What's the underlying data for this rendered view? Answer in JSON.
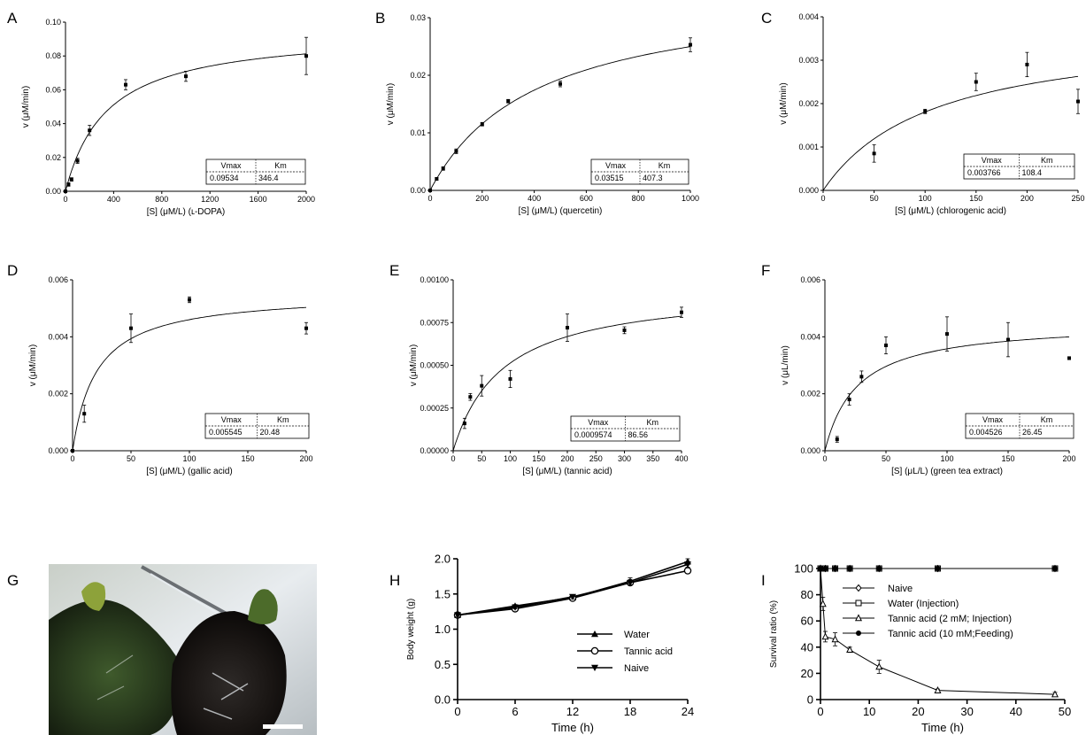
{
  "figure": {
    "panel_g": {
      "letter": "G",
      "alt": "photograph of two tadpoles (scale bar)"
    }
  },
  "chart_data": [
    {
      "panel": "A",
      "type": "scatter",
      "xlabel": "[S] (μM/L) (ʟ-DOPA)",
      "ylabel": "v (μM/min)",
      "xlim": [
        0,
        2000
      ],
      "ylim": [
        0,
        0.1
      ],
      "xticks": [
        "0",
        "400",
        "800",
        "1200",
        "1600",
        "2000"
      ],
      "yticks": [
        "0.00",
        "0.02",
        "0.04",
        "0.06",
        "0.08",
        "0.10"
      ],
      "x": [
        0,
        25,
        50,
        100,
        200,
        500,
        1000,
        2000
      ],
      "y": [
        0.0,
        0.004,
        0.007,
        0.018,
        0.036,
        0.063,
        0.068,
        0.08
      ],
      "err": [
        0,
        0.001,
        0.001,
        0.0015,
        0.003,
        0.003,
        0.003,
        0.011
      ],
      "fit": {
        "model": "michaelis-menten",
        "vmax": 0.09534,
        "km": 346.4
      },
      "table": {
        "headers": [
          "Vmax",
          "Km"
        ],
        "values": [
          "0.09534",
          "346.4"
        ]
      }
    },
    {
      "panel": "B",
      "type": "scatter",
      "xlabel": "[S] (μM/L) (quercetin)",
      "ylabel": "v (μM/min)",
      "xlim": [
        0,
        1000
      ],
      "ylim": [
        0,
        0.03
      ],
      "xticks": [
        "0",
        "200",
        "400",
        "600",
        "800",
        "1000"
      ],
      "yticks": [
        "0.00",
        "0.01",
        "0.02",
        "0.03"
      ],
      "x": [
        0,
        25,
        50,
        100,
        200,
        300,
        500,
        1000
      ],
      "y": [
        0.0,
        0.002,
        0.0038,
        0.0068,
        0.0115,
        0.0155,
        0.0185,
        0.0253
      ],
      "err": [
        0,
        0.0002,
        0.0003,
        0.0004,
        0.0003,
        0.0003,
        0.0005,
        0.0012
      ],
      "fit": {
        "model": "michaelis-menten",
        "vmax": 0.03515,
        "km": 407.3
      },
      "table": {
        "headers": [
          "Vmax",
          "Km"
        ],
        "values": [
          "0.03515",
          "407.3"
        ]
      }
    },
    {
      "panel": "C",
      "type": "scatter",
      "xlabel": "[S] (μM/L) (chlorogenic acid)",
      "ylabel": "v (μM/min)",
      "xlim": [
        0,
        250
      ],
      "ylim": [
        0,
        0.004
      ],
      "xticks": [
        "0",
        "50",
        "100",
        "150",
        "200",
        "250"
      ],
      "yticks": [
        "0.000",
        "0.001",
        "0.002",
        "0.003",
        "0.004"
      ],
      "x": [
        50,
        100,
        150,
        200,
        250
      ],
      "y": [
        0.00085,
        0.00182,
        0.0025,
        0.0029,
        0.00205
      ],
      "err": [
        0.0002,
        5e-05,
        0.0002,
        0.00028,
        0.00028
      ],
      "fit": {
        "model": "michaelis-menten",
        "vmax": 0.003766,
        "km": 108.4
      },
      "table": {
        "headers": [
          "Vmax",
          "Km"
        ],
        "values": [
          "0.003766",
          "108.4"
        ]
      }
    },
    {
      "panel": "D",
      "type": "scatter",
      "xlabel": "[S] (μM/L) (gallic acid)",
      "ylabel": "v (μM/min)",
      "xlim": [
        0,
        200
      ],
      "ylim": [
        0,
        0.006
      ],
      "xticks": [
        "0",
        "50",
        "100",
        "150",
        "200"
      ],
      "yticks": [
        "0.000",
        "0.002",
        "0.004",
        "0.006"
      ],
      "x": [
        0,
        10,
        50,
        100,
        200
      ],
      "y": [
        0.0,
        0.0013,
        0.0043,
        0.0053,
        0.0043
      ],
      "err": [
        0,
        0.0003,
        0.0005,
        0.0001,
        0.0002
      ],
      "fit": {
        "model": "michaelis-menten",
        "vmax": 0.005545,
        "km": 20.48
      },
      "table": {
        "headers": [
          "Vmax",
          "Km"
        ],
        "values": [
          "0.005545",
          "20.48"
        ]
      }
    },
    {
      "panel": "E",
      "type": "scatter",
      "xlabel": "[S] (μM/L) (tannic acid)",
      "ylabel": "v (μM/min)",
      "xlim": [
        0,
        400
      ],
      "ylim": [
        0,
        0.001
      ],
      "xticks": [
        "0",
        "50",
        "100",
        "150",
        "200",
        "250",
        "300",
        "350",
        "400"
      ],
      "yticks": [
        "0.00000",
        "0.00025",
        "0.00050",
        "0.00075",
        "0.00100"
      ],
      "x": [
        20,
        30,
        50,
        100,
        200,
        300,
        400
      ],
      "y": [
        0.00016,
        0.000315,
        0.00038,
        0.00042,
        0.00072,
        0.000705,
        0.00081
      ],
      "err": [
        3e-05,
        2e-05,
        6e-05,
        5e-05,
        8e-05,
        2e-05,
        3e-05
      ],
      "fit": {
        "model": "michaelis-menten",
        "vmax": 0.0009574,
        "km": 86.56
      },
      "table": {
        "headers": [
          "Vmax",
          "Km"
        ],
        "values": [
          "0.0009574",
          "86.56"
        ]
      }
    },
    {
      "panel": "F",
      "type": "scatter",
      "xlabel": "[S] (μL/L) (green tea extract)",
      "ylabel": "v (μL/min)",
      "xlim": [
        0,
        200
      ],
      "ylim": [
        0,
        0.006
      ],
      "xticks": [
        "0",
        "50",
        "100",
        "150",
        "200"
      ],
      "yticks": [
        "0.000",
        "0.002",
        "0.004",
        "0.006"
      ],
      "x": [
        10,
        20,
        30,
        50,
        100,
        150,
        200
      ],
      "y": [
        0.0004,
        0.0018,
        0.0026,
        0.0037,
        0.0041,
        0.0039,
        0.00325
      ],
      "err": [
        0.0001,
        0.0002,
        0.0002,
        0.0003,
        0.0006,
        0.0006,
        5e-05
      ],
      "fit": {
        "model": "michaelis-menten",
        "vmax": 0.004526,
        "km": 26.45
      },
      "table": {
        "headers": [
          "Vmax",
          "Km"
        ],
        "values": [
          "0.004526",
          "26.45"
        ]
      }
    },
    {
      "panel": "H",
      "type": "line",
      "xlabel": "Time (h)",
      "ylabel": "Body weight (g)",
      "xlim": [
        0,
        24
      ],
      "ylim": [
        0,
        2.0
      ],
      "xticks": [
        "0",
        "6",
        "12",
        "18",
        "24"
      ],
      "yticks": [
        "0.0",
        "0.5",
        "1.0",
        "1.5",
        "2.0"
      ],
      "legend_position": "lower-right",
      "x": [
        0,
        6,
        12,
        18,
        24
      ],
      "series": [
        {
          "name": "Water",
          "marker": "triangle-up",
          "values": [
            1.2,
            1.33,
            1.45,
            1.68,
            1.96
          ],
          "err": [
            0.02,
            0.02,
            0.03,
            0.05,
            0.04
          ]
        },
        {
          "name": "Tannic acid",
          "marker": "circle-open",
          "values": [
            1.2,
            1.29,
            1.44,
            1.66,
            1.83
          ],
          "err": [
            0.02,
            0.02,
            0.03,
            0.03,
            0.04
          ]
        },
        {
          "name": "Naive",
          "marker": "triangle-down",
          "values": [
            1.2,
            1.31,
            1.46,
            1.66,
            1.92
          ],
          "err": [
            0.02,
            0.02,
            0.03,
            0.03,
            0.04
          ]
        }
      ]
    },
    {
      "panel": "I",
      "type": "line",
      "xlabel": "Time (h)",
      "ylabel": "Survival ratio (%)",
      "xlim": [
        0,
        50
      ],
      "ylim": [
        0,
        100
      ],
      "xticks": [
        "0",
        "10",
        "20",
        "30",
        "40",
        "50"
      ],
      "yticks": [
        "0",
        "20",
        "40",
        "60",
        "80",
        "100"
      ],
      "legend_position": "center-right",
      "series": [
        {
          "name": "Naive",
          "marker": "diamond-open",
          "x": [
            0,
            1,
            3,
            6,
            12,
            24,
            48
          ],
          "values": [
            100,
            100,
            100,
            100,
            100,
            100,
            100
          ]
        },
        {
          "name": "Water (Injection)",
          "marker": "square-open",
          "x": [
            0,
            1,
            3,
            6,
            12,
            24,
            48
          ],
          "values": [
            100,
            100,
            100,
            100,
            100,
            100,
            100
          ]
        },
        {
          "name": "Tannic acid (2 mM; Injection)",
          "marker": "triangle-open",
          "x": [
            0,
            0.5,
            1,
            3,
            6,
            12,
            24,
            48
          ],
          "values": [
            100,
            73,
            48,
            46,
            38,
            25,
            7,
            4
          ],
          "err": [
            0,
            5,
            4,
            5,
            2,
            5,
            1,
            1.5
          ]
        },
        {
          "name": "Tannic acid (10 mM;Feeding)",
          "marker": "circle-filled",
          "x": [
            0,
            1,
            3,
            6,
            12,
            24,
            48
          ],
          "values": [
            100,
            100,
            100,
            100,
            100,
            100,
            100
          ]
        }
      ]
    }
  ]
}
